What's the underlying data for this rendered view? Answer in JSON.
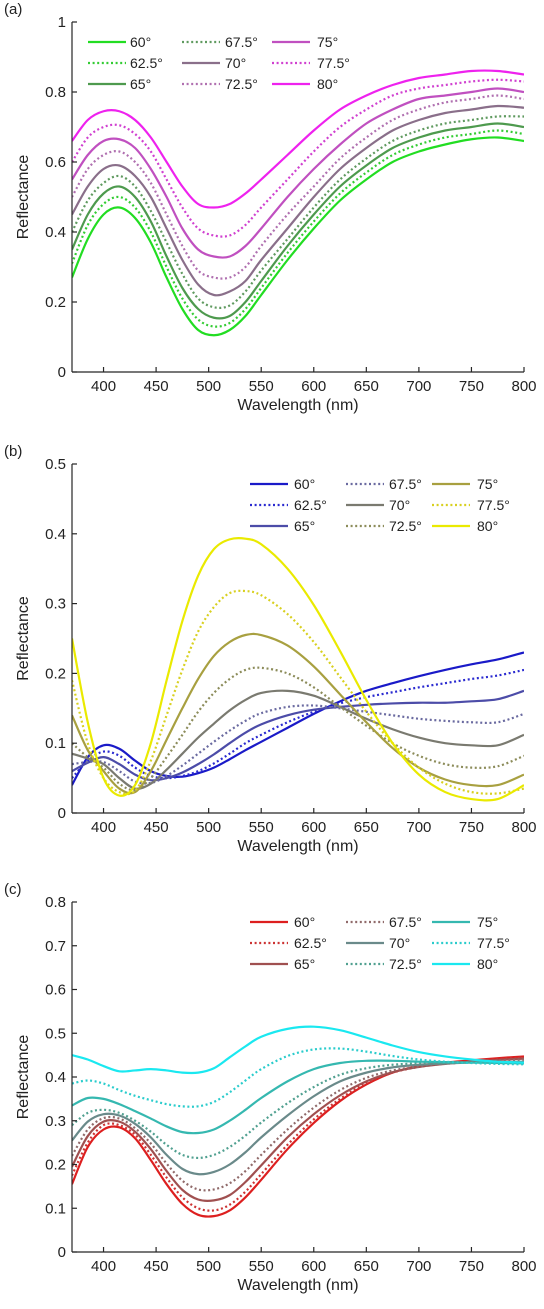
{
  "chart_data": [
    {
      "panel": "(a)",
      "type": "line",
      "xlabel": "Wavelength (nm)",
      "ylabel": "Reflectance",
      "xlim": [
        370,
        800
      ],
      "ylim": [
        0,
        1
      ],
      "xticks": [
        400,
        450,
        500,
        550,
        600,
        650,
        700,
        750,
        800
      ],
      "yticks": [
        0,
        0.2,
        0.4,
        0.6,
        0.8,
        1
      ],
      "ytick_labels": [
        "0",
        "0.2",
        "0.4",
        "0.6",
        "0.8",
        "1"
      ],
      "legend_position": "top-left",
      "x": [
        370,
        385,
        400,
        415,
        430,
        445,
        460,
        475,
        490,
        505,
        520,
        535,
        550,
        575,
        600,
        625,
        650,
        675,
        700,
        725,
        750,
        775,
        800
      ],
      "series": [
        {
          "name": "60°",
          "color": "#22dd22",
          "dash": "solid",
          "values": [
            0.27,
            0.38,
            0.45,
            0.47,
            0.44,
            0.37,
            0.27,
            0.18,
            0.12,
            0.105,
            0.12,
            0.16,
            0.22,
            0.32,
            0.41,
            0.49,
            0.55,
            0.6,
            0.63,
            0.65,
            0.665,
            0.67,
            0.66
          ]
        },
        {
          "name": "62.5°",
          "color": "#33cc33",
          "dash": "dotted",
          "values": [
            0.31,
            0.42,
            0.48,
            0.5,
            0.47,
            0.4,
            0.3,
            0.21,
            0.15,
            0.13,
            0.14,
            0.18,
            0.24,
            0.34,
            0.43,
            0.51,
            0.57,
            0.62,
            0.65,
            0.67,
            0.68,
            0.69,
            0.68
          ]
        },
        {
          "name": "65°",
          "color": "#4e9a4e",
          "dash": "solid",
          "values": [
            0.35,
            0.45,
            0.51,
            0.53,
            0.5,
            0.43,
            0.33,
            0.24,
            0.18,
            0.155,
            0.16,
            0.2,
            0.26,
            0.36,
            0.45,
            0.53,
            0.59,
            0.64,
            0.67,
            0.69,
            0.7,
            0.71,
            0.7
          ]
        },
        {
          "name": "67.5°",
          "color": "#5f9a5f",
          "dash": "dotted",
          "values": [
            0.4,
            0.49,
            0.54,
            0.56,
            0.53,
            0.46,
            0.37,
            0.28,
            0.21,
            0.185,
            0.19,
            0.23,
            0.29,
            0.38,
            0.47,
            0.55,
            0.61,
            0.66,
            0.69,
            0.71,
            0.72,
            0.73,
            0.73
          ]
        },
        {
          "name": "70°",
          "color": "#8a6f8a",
          "dash": "solid",
          "values": [
            0.45,
            0.53,
            0.58,
            0.59,
            0.56,
            0.5,
            0.41,
            0.32,
            0.25,
            0.22,
            0.23,
            0.26,
            0.32,
            0.41,
            0.5,
            0.58,
            0.64,
            0.69,
            0.72,
            0.74,
            0.75,
            0.76,
            0.755
          ]
        },
        {
          "name": "72.5°",
          "color": "#b070b0",
          "dash": "dotted",
          "values": [
            0.5,
            0.58,
            0.62,
            0.63,
            0.6,
            0.54,
            0.45,
            0.36,
            0.29,
            0.27,
            0.27,
            0.3,
            0.36,
            0.45,
            0.53,
            0.61,
            0.67,
            0.72,
            0.75,
            0.77,
            0.78,
            0.79,
            0.78
          ]
        },
        {
          "name": "75°",
          "color": "#c050c0",
          "dash": "solid",
          "values": [
            0.55,
            0.62,
            0.66,
            0.665,
            0.64,
            0.58,
            0.5,
            0.41,
            0.35,
            0.33,
            0.33,
            0.36,
            0.41,
            0.5,
            0.58,
            0.65,
            0.71,
            0.75,
            0.78,
            0.79,
            0.8,
            0.81,
            0.8
          ]
        },
        {
          "name": "77.5°",
          "color": "#d040d0",
          "dash": "dotted",
          "values": [
            0.6,
            0.67,
            0.7,
            0.705,
            0.68,
            0.63,
            0.55,
            0.47,
            0.41,
            0.39,
            0.39,
            0.42,
            0.47,
            0.55,
            0.63,
            0.7,
            0.75,
            0.79,
            0.81,
            0.82,
            0.83,
            0.835,
            0.83
          ]
        },
        {
          "name": "80°",
          "color": "#ee22ee",
          "dash": "solid",
          "values": [
            0.66,
            0.72,
            0.745,
            0.745,
            0.72,
            0.67,
            0.6,
            0.53,
            0.48,
            0.47,
            0.48,
            0.51,
            0.55,
            0.62,
            0.69,
            0.75,
            0.79,
            0.82,
            0.84,
            0.85,
            0.86,
            0.86,
            0.85
          ]
        }
      ]
    },
    {
      "panel": "(b)",
      "type": "line",
      "xlabel": "Wavelength (nm)",
      "ylabel": "Reflectance",
      "xlim": [
        370,
        800
      ],
      "ylim": [
        0,
        0.5
      ],
      "xticks": [
        400,
        450,
        500,
        550,
        600,
        650,
        700,
        750,
        800
      ],
      "yticks": [
        0,
        0.1,
        0.2,
        0.3,
        0.4,
        0.5
      ],
      "ytick_labels": [
        "0",
        "0.1",
        "0.2",
        "0.3",
        "0.4",
        "0.5"
      ],
      "legend_position": "top-right",
      "x": [
        370,
        385,
        400,
        415,
        430,
        445,
        460,
        475,
        490,
        505,
        520,
        535,
        550,
        575,
        600,
        625,
        650,
        675,
        700,
        725,
        750,
        775,
        800
      ],
      "series": [
        {
          "name": "60°",
          "color": "#1a1ac8",
          "dash": "solid",
          "values": [
            0.04,
            0.08,
            0.097,
            0.092,
            0.075,
            0.06,
            0.053,
            0.052,
            0.057,
            0.065,
            0.077,
            0.09,
            0.102,
            0.122,
            0.142,
            0.16,
            0.175,
            0.186,
            0.196,
            0.205,
            0.213,
            0.22,
            0.23
          ]
        },
        {
          "name": "62.5°",
          "color": "#2a2ad0",
          "dash": "dotted",
          "values": [
            0.05,
            0.075,
            0.088,
            0.082,
            0.065,
            0.053,
            0.05,
            0.053,
            0.06,
            0.071,
            0.085,
            0.1,
            0.112,
            0.13,
            0.145,
            0.157,
            0.166,
            0.173,
            0.18,
            0.186,
            0.192,
            0.197,
            0.205
          ]
        },
        {
          "name": "65°",
          "color": "#4c4ca8",
          "dash": "solid",
          "values": [
            0.06,
            0.072,
            0.08,
            0.07,
            0.055,
            0.047,
            0.05,
            0.058,
            0.07,
            0.084,
            0.1,
            0.115,
            0.127,
            0.14,
            0.148,
            0.152,
            0.155,
            0.157,
            0.158,
            0.158,
            0.16,
            0.163,
            0.175
          ]
        },
        {
          "name": "67.5°",
          "color": "#6a6aa0",
          "dash": "dotted",
          "values": [
            0.07,
            0.073,
            0.073,
            0.06,
            0.045,
            0.043,
            0.053,
            0.068,
            0.085,
            0.102,
            0.118,
            0.132,
            0.143,
            0.152,
            0.154,
            0.15,
            0.145,
            0.14,
            0.135,
            0.132,
            0.13,
            0.13,
            0.142
          ]
        },
        {
          "name": "70°",
          "color": "#7a7a70",
          "dash": "solid",
          "values": [
            0.085,
            0.078,
            0.07,
            0.05,
            0.035,
            0.042,
            0.062,
            0.085,
            0.108,
            0.128,
            0.147,
            0.162,
            0.172,
            0.175,
            0.168,
            0.152,
            0.135,
            0.12,
            0.108,
            0.1,
            0.097,
            0.097,
            0.112
          ]
        },
        {
          "name": "72.5°",
          "color": "#8c8c5a",
          "dash": "dotted",
          "values": [
            0.1,
            0.08,
            0.065,
            0.042,
            0.033,
            0.05,
            0.08,
            0.112,
            0.145,
            0.172,
            0.192,
            0.205,
            0.208,
            0.2,
            0.18,
            0.152,
            0.125,
            0.1,
            0.082,
            0.07,
            0.065,
            0.067,
            0.082
          ]
        },
        {
          "name": "75°",
          "color": "#a8a040",
          "dash": "solid",
          "values": [
            0.14,
            0.09,
            0.06,
            0.035,
            0.03,
            0.06,
            0.105,
            0.15,
            0.192,
            0.225,
            0.245,
            0.255,
            0.255,
            0.24,
            0.21,
            0.17,
            0.13,
            0.093,
            0.065,
            0.048,
            0.04,
            0.04,
            0.055
          ]
        },
        {
          "name": "77.5°",
          "color": "#d8d020",
          "dash": "dotted",
          "values": [
            0.19,
            0.1,
            0.05,
            0.03,
            0.032,
            0.075,
            0.14,
            0.205,
            0.26,
            0.295,
            0.315,
            0.318,
            0.312,
            0.285,
            0.245,
            0.195,
            0.145,
            0.1,
            0.065,
            0.042,
            0.03,
            0.028,
            0.035
          ]
        },
        {
          "name": "80°",
          "color": "#eaea00",
          "dash": "solid",
          "values": [
            0.25,
            0.13,
            0.05,
            0.025,
            0.04,
            0.1,
            0.19,
            0.275,
            0.34,
            0.378,
            0.392,
            0.393,
            0.385,
            0.35,
            0.298,
            0.232,
            0.162,
            0.1,
            0.055,
            0.03,
            0.02,
            0.02,
            0.04
          ]
        }
      ]
    },
    {
      "panel": "(c)",
      "type": "line",
      "xlabel": "Wavelength (nm)",
      "ylabel": "Reflectance",
      "xlim": [
        370,
        800
      ],
      "ylim": [
        0,
        0.8
      ],
      "xticks": [
        400,
        450,
        500,
        550,
        600,
        650,
        700,
        750,
        800
      ],
      "yticks": [
        0,
        0.1,
        0.2,
        0.3,
        0.4,
        0.5,
        0.6,
        0.7,
        0.8
      ],
      "ytick_labels": [
        "0",
        "0.1",
        "0.2",
        "0.3",
        "0.4",
        "0.5",
        "0.6",
        "0.7",
        "0.8"
      ],
      "legend_position": "top-right",
      "x": [
        370,
        385,
        400,
        415,
        430,
        445,
        460,
        475,
        490,
        505,
        520,
        535,
        550,
        575,
        600,
        625,
        650,
        675,
        700,
        725,
        750,
        775,
        800
      ],
      "series": [
        {
          "name": "60°",
          "color": "#dd1f1f",
          "dash": "solid",
          "values": [
            0.155,
            0.24,
            0.28,
            0.285,
            0.26,
            0.21,
            0.155,
            0.11,
            0.085,
            0.082,
            0.095,
            0.125,
            0.165,
            0.235,
            0.295,
            0.345,
            0.383,
            0.41,
            0.425,
            0.433,
            0.438,
            0.443,
            0.447
          ]
        },
        {
          "name": "62.5°",
          "color": "#cc3333",
          "dash": "dotted",
          "values": [
            0.175,
            0.25,
            0.29,
            0.29,
            0.268,
            0.222,
            0.17,
            0.125,
            0.1,
            0.095,
            0.108,
            0.138,
            0.178,
            0.245,
            0.303,
            0.35,
            0.386,
            0.41,
            0.423,
            0.431,
            0.436,
            0.441,
            0.445
          ]
        },
        {
          "name": "65°",
          "color": "#a05050",
          "dash": "solid",
          "values": [
            0.195,
            0.265,
            0.298,
            0.298,
            0.275,
            0.235,
            0.185,
            0.142,
            0.12,
            0.118,
            0.13,
            0.16,
            0.198,
            0.262,
            0.315,
            0.358,
            0.39,
            0.411,
            0.423,
            0.43,
            0.435,
            0.439,
            0.442
          ]
        },
        {
          "name": "67.5°",
          "color": "#906a6a",
          "dash": "dotted",
          "values": [
            0.22,
            0.28,
            0.306,
            0.305,
            0.283,
            0.248,
            0.202,
            0.163,
            0.143,
            0.143,
            0.157,
            0.185,
            0.222,
            0.28,
            0.33,
            0.37,
            0.398,
            0.415,
            0.424,
            0.43,
            0.434,
            0.437,
            0.44
          ]
        },
        {
          "name": "70°",
          "color": "#6a8a8a",
          "dash": "solid",
          "values": [
            0.255,
            0.298,
            0.315,
            0.312,
            0.293,
            0.262,
            0.222,
            0.19,
            0.178,
            0.183,
            0.2,
            0.228,
            0.262,
            0.312,
            0.356,
            0.39,
            0.41,
            0.422,
            0.428,
            0.431,
            0.433,
            0.434,
            0.435
          ]
        },
        {
          "name": "72.5°",
          "color": "#50a090",
          "dash": "dotted",
          "values": [
            0.29,
            0.318,
            0.325,
            0.318,
            0.3,
            0.275,
            0.245,
            0.222,
            0.215,
            0.222,
            0.24,
            0.266,
            0.296,
            0.34,
            0.377,
            0.405,
            0.42,
            0.428,
            0.431,
            0.432,
            0.433,
            0.433,
            0.433
          ]
        },
        {
          "name": "75°",
          "color": "#35b8b0",
          "dash": "solid",
          "values": [
            0.335,
            0.352,
            0.35,
            0.338,
            0.322,
            0.305,
            0.287,
            0.274,
            0.272,
            0.28,
            0.3,
            0.325,
            0.352,
            0.39,
            0.418,
            0.432,
            0.437,
            0.437,
            0.435,
            0.434,
            0.433,
            0.432,
            0.431
          ]
        },
        {
          "name": "77.5°",
          "color": "#2acccc",
          "dash": "dotted",
          "values": [
            0.385,
            0.392,
            0.385,
            0.37,
            0.357,
            0.347,
            0.338,
            0.333,
            0.333,
            0.343,
            0.365,
            0.392,
            0.418,
            0.448,
            0.463,
            0.465,
            0.458,
            0.448,
            0.44,
            0.435,
            0.432,
            0.43,
            0.429
          ]
        },
        {
          "name": "80°",
          "color": "#1ae8f0",
          "dash": "solid",
          "values": [
            0.45,
            0.44,
            0.425,
            0.413,
            0.415,
            0.418,
            0.415,
            0.41,
            0.41,
            0.42,
            0.445,
            0.47,
            0.492,
            0.51,
            0.515,
            0.507,
            0.49,
            0.472,
            0.457,
            0.447,
            0.44,
            0.435,
            0.433
          ]
        }
      ]
    }
  ]
}
